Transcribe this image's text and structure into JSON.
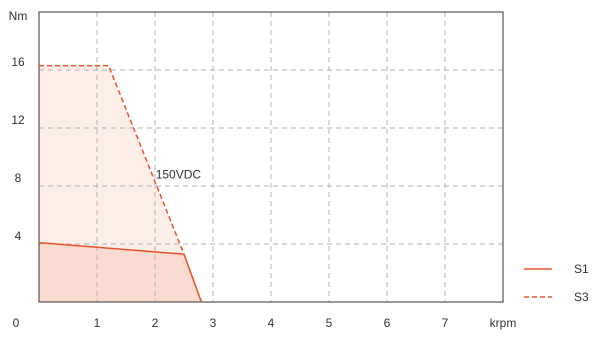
{
  "chart_data": {
    "type": "area",
    "title": "",
    "xlabel": "krpm",
    "ylabel": "Nm",
    "xlim": [
      0,
      8
    ],
    "ylim": [
      0,
      20
    ],
    "x_ticks": [
      0,
      1,
      2,
      3,
      4,
      5,
      6,
      7
    ],
    "x_tick_labels": [
      "0",
      "1",
      "2",
      "3",
      "4",
      "5",
      "6",
      "7"
    ],
    "y_ticks": [
      4,
      8,
      12,
      16
    ],
    "y_tick_labels": [
      "4",
      "8",
      "12",
      "16"
    ],
    "grid": true,
    "legend_position": "bottom-right",
    "series": [
      {
        "name": "S1",
        "line_style": "solid",
        "color": "#e8552c",
        "fill_color": "#fadbd2",
        "points": [
          [
            0,
            4.1
          ],
          [
            2.5,
            3.3
          ],
          [
            2.8,
            0
          ]
        ]
      },
      {
        "name": "S3",
        "line_style": "dashed",
        "color": "#e8552c",
        "fill_color": "#fdeee8",
        "points": [
          [
            0,
            16.3
          ],
          [
            1.2,
            16.3
          ],
          [
            2.5,
            3.3
          ],
          [
            2.8,
            0
          ]
        ]
      }
    ],
    "annotations": [
      {
        "text": "150VDC",
        "x": 2.15,
        "y": 8.8
      }
    ]
  }
}
